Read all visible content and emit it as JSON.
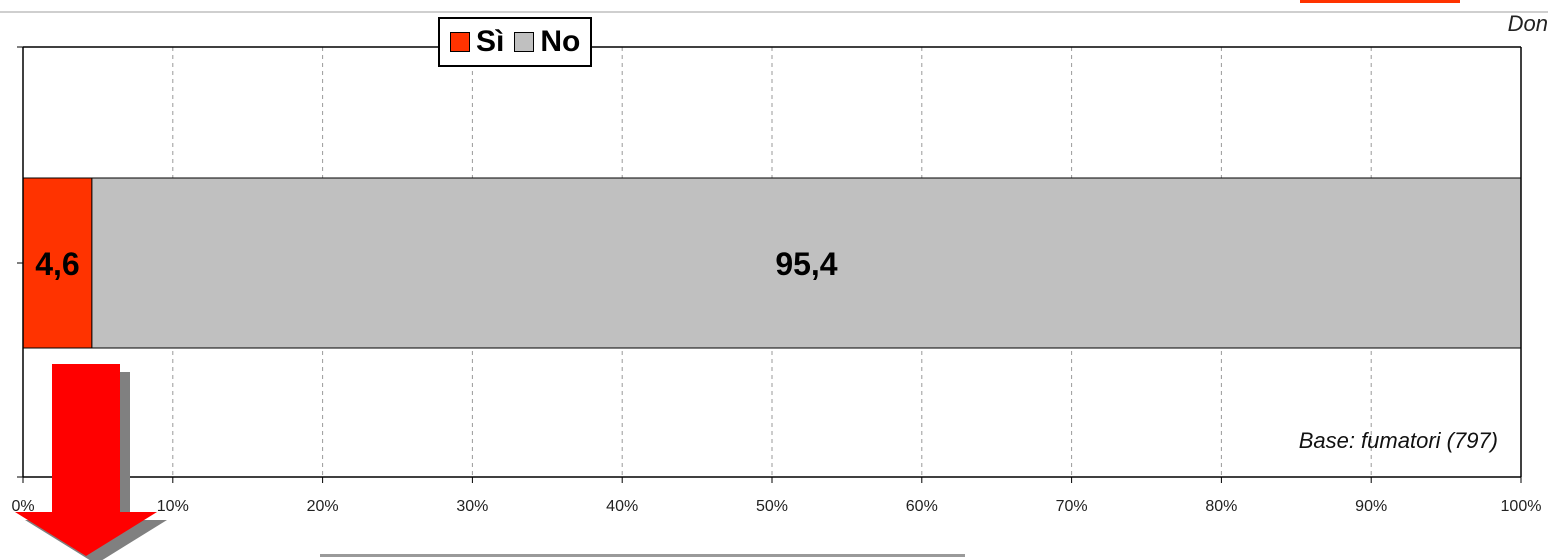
{
  "header": {
    "corner_text": "Don"
  },
  "chart_data": {
    "type": "bar",
    "orientation": "horizontal",
    "stacked": true,
    "categories": [
      ""
    ],
    "series": [
      {
        "name": "Sì",
        "values": [
          4.6
        ],
        "color": "#ff3300"
      },
      {
        "name": "No",
        "values": [
          95.4
        ],
        "color": "#c0c0c0"
      }
    ],
    "data_labels": [
      "4,6",
      "95,4"
    ],
    "xlim": [
      0,
      100
    ],
    "x_ticks": [
      0,
      10,
      20,
      30,
      40,
      50,
      60,
      70,
      80,
      90,
      100
    ],
    "x_tick_labels": [
      "0%",
      "10%",
      "20%",
      "30%",
      "40%",
      "50%",
      "60%",
      "70%",
      "80%",
      "90%",
      "100%"
    ],
    "grid": "vertical-dashed",
    "legend_position": "top-left",
    "annotation": "Base: fumatori (797)"
  },
  "colors": {
    "arrow": "#ff0000",
    "arrow_shadow": "#808080"
  },
  "icons": {
    "arrow": "down-arrow-icon"
  }
}
